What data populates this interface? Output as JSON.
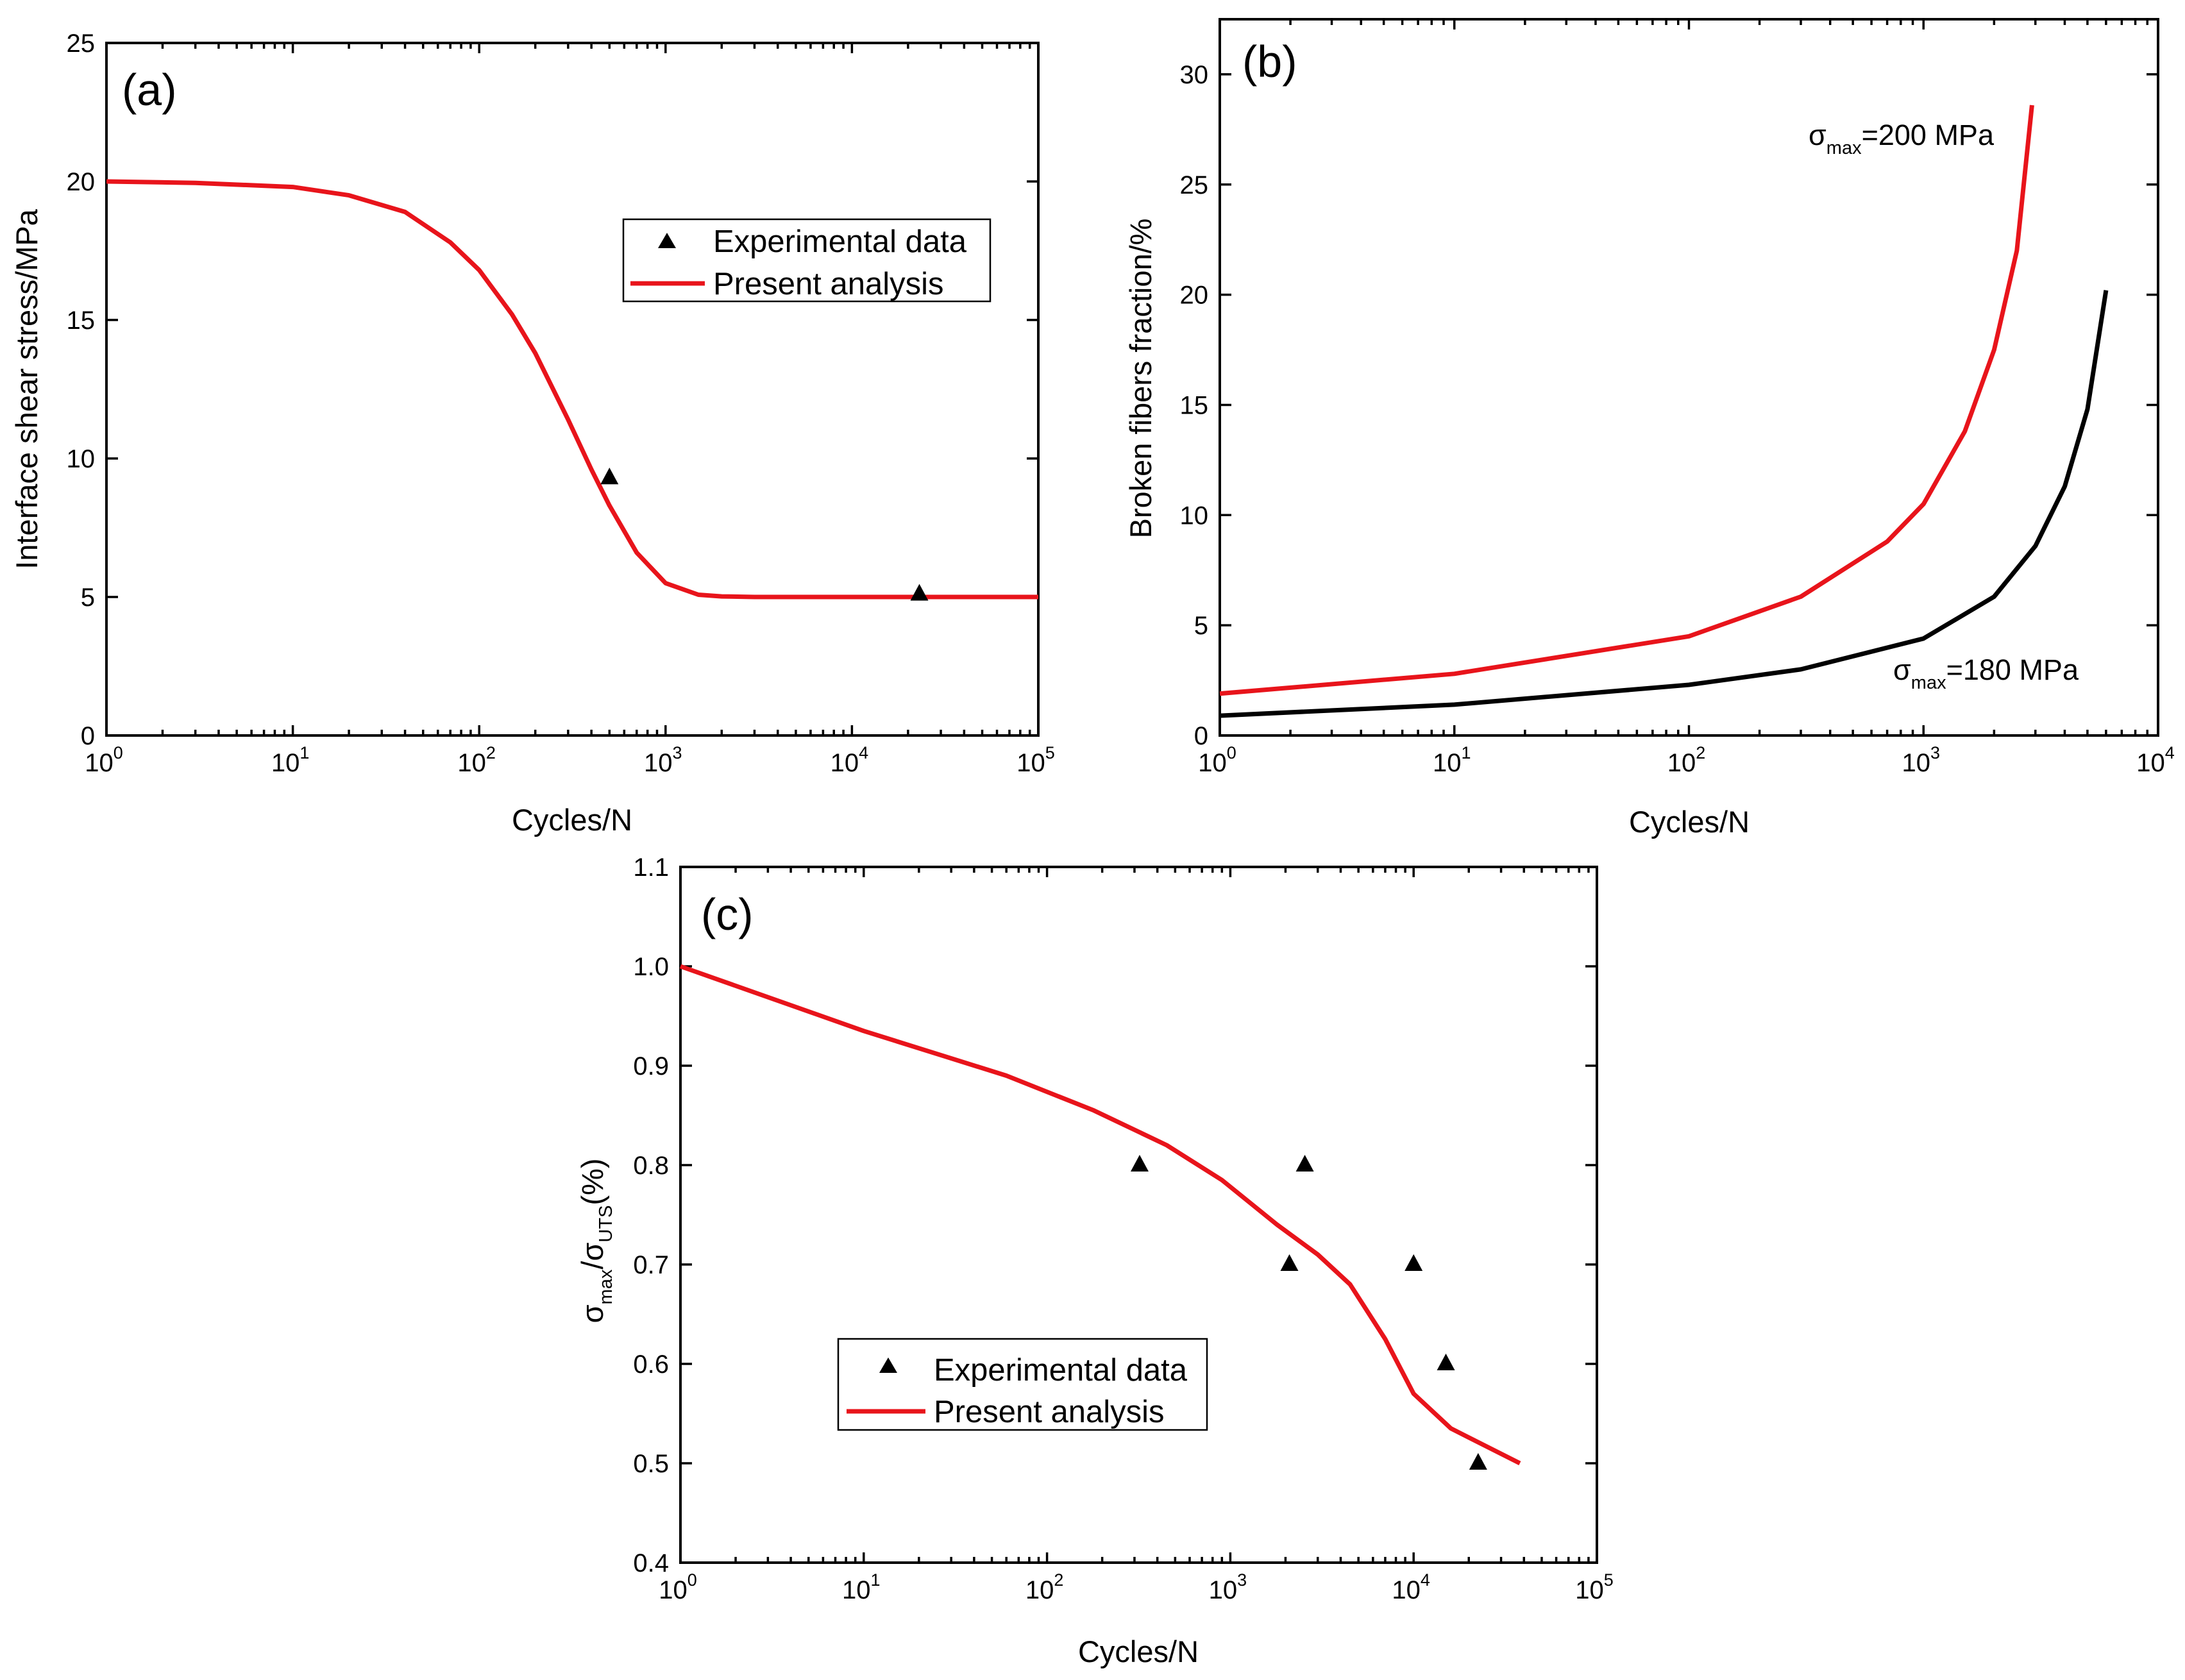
{
  "chart_data": [
    {
      "id": "a",
      "type": "line",
      "panel_label": "(a)",
      "xlabel": "Cycles/N",
      "ylabel": "Interface shear stress/MPa",
      "xscale": "log",
      "xlim": [
        1,
        100000
      ],
      "ylim": [
        0,
        25
      ],
      "yticks": [
        "0",
        "5",
        "10",
        "15",
        "20",
        "25"
      ],
      "xticks": [
        {
          "base": "10",
          "exp": "0"
        },
        {
          "base": "10",
          "exp": "1"
        },
        {
          "base": "10",
          "exp": "2"
        },
        {
          "base": "10",
          "exp": "3"
        },
        {
          "base": "10",
          "exp": "4"
        },
        {
          "base": "10",
          "exp": "5"
        }
      ],
      "series": [
        {
          "name": "Present analysis",
          "kind": "line",
          "color": "#e8141b",
          "x": [
            1,
            3,
            10,
            20,
            40,
            70,
            100,
            150,
            200,
            300,
            400,
            500,
            700,
            1000,
            1500,
            2000,
            3000,
            10000,
            100000
          ],
          "y": [
            20,
            19.95,
            19.8,
            19.5,
            18.9,
            17.8,
            16.8,
            15.2,
            13.8,
            11.4,
            9.6,
            8.3,
            6.6,
            5.5,
            5.08,
            5.02,
            5.0,
            5.0,
            5.0
          ]
        },
        {
          "name": "Experimental data",
          "kind": "scatter",
          "marker": "triangle",
          "color": "#000000",
          "x": [
            500,
            23000
          ],
          "y": [
            9.3,
            5.1
          ]
        }
      ],
      "legend": {
        "position": "upper-right",
        "entries": [
          "Experimental data",
          "Present analysis"
        ]
      }
    },
    {
      "id": "b",
      "type": "line",
      "panel_label": "(b)",
      "xlabel": "Cycles/N",
      "ylabel": "Broken fibers fraction/%",
      "xscale": "log",
      "xlim": [
        1,
        10000
      ],
      "ylim": [
        0,
        32.5
      ],
      "yticks": [
        "0",
        "5",
        "10",
        "15",
        "20",
        "25",
        "30"
      ],
      "xticks": [
        {
          "base": "10",
          "exp": "0"
        },
        {
          "base": "10",
          "exp": "1"
        },
        {
          "base": "10",
          "exp": "2"
        },
        {
          "base": "10",
          "exp": "3"
        },
        {
          "base": "10",
          "exp": "4"
        }
      ],
      "series": [
        {
          "name": "σmax=200 MPa",
          "kind": "line",
          "color": "#e8141b",
          "x": [
            1,
            10,
            100,
            300,
            700,
            1000,
            1500,
            2000,
            2500,
            2900
          ],
          "y": [
            1.9,
            2.8,
            4.5,
            6.3,
            8.8,
            10.5,
            13.8,
            17.5,
            22.0,
            28.6
          ]
        },
        {
          "name": "σmax=180 MPa",
          "kind": "line",
          "color": "#000000",
          "x": [
            1,
            10,
            100,
            300,
            1000,
            2000,
            3000,
            4000,
            5000,
            6000
          ],
          "y": [
            0.9,
            1.4,
            2.3,
            3.0,
            4.4,
            6.3,
            8.6,
            11.3,
            14.8,
            20.2
          ]
        }
      ],
      "annotations": [
        {
          "sym": "σ",
          "sub": "max",
          "text": "=200 MPa"
        },
        {
          "sym": "σ",
          "sub": "max",
          "text": "=180 MPa"
        }
      ]
    },
    {
      "id": "c",
      "type": "line",
      "panel_label": "(c)",
      "xlabel": "Cycles/N",
      "ylabel_parts": {
        "s1": "σ",
        "sub1": "max",
        "slash": "/",
        "s2": "σ",
        "sub2": "UTS",
        "tail": "(%)"
      },
      "xscale": "log",
      "xlim": [
        1,
        100000
      ],
      "ylim": [
        0.4,
        1.1
      ],
      "yticks": [
        "0.4",
        "0.5",
        "0.6",
        "0.7",
        "0.8",
        "0.9",
        "1.0",
        "1.1"
      ],
      "xticks": [
        {
          "base": "10",
          "exp": "0"
        },
        {
          "base": "10",
          "exp": "1"
        },
        {
          "base": "10",
          "exp": "2"
        },
        {
          "base": "10",
          "exp": "3"
        },
        {
          "base": "10",
          "exp": "4"
        },
        {
          "base": "10",
          "exp": "5"
        }
      ],
      "series": [
        {
          "name": "Present analysis",
          "kind": "line",
          "color": "#e8141b",
          "x": [
            1,
            10,
            60,
            180,
            450,
            900,
            1800,
            3000,
            4500,
            7000,
            10000,
            16000,
            38000
          ],
          "y": [
            1.0,
            0.935,
            0.89,
            0.855,
            0.82,
            0.785,
            0.74,
            0.71,
            0.68,
            0.625,
            0.57,
            0.535,
            0.5
          ]
        },
        {
          "name": "Experimental data",
          "kind": "scatter",
          "marker": "triangle",
          "color": "#000000",
          "x": [
            320,
            2100,
            2550,
            10000,
            15000,
            22500
          ],
          "y": [
            0.8,
            0.7,
            0.8,
            0.7,
            0.6,
            0.5
          ]
        }
      ],
      "legend": {
        "position": "lower-left",
        "entries": [
          "Experimental data",
          "Present analysis"
        ]
      }
    }
  ]
}
